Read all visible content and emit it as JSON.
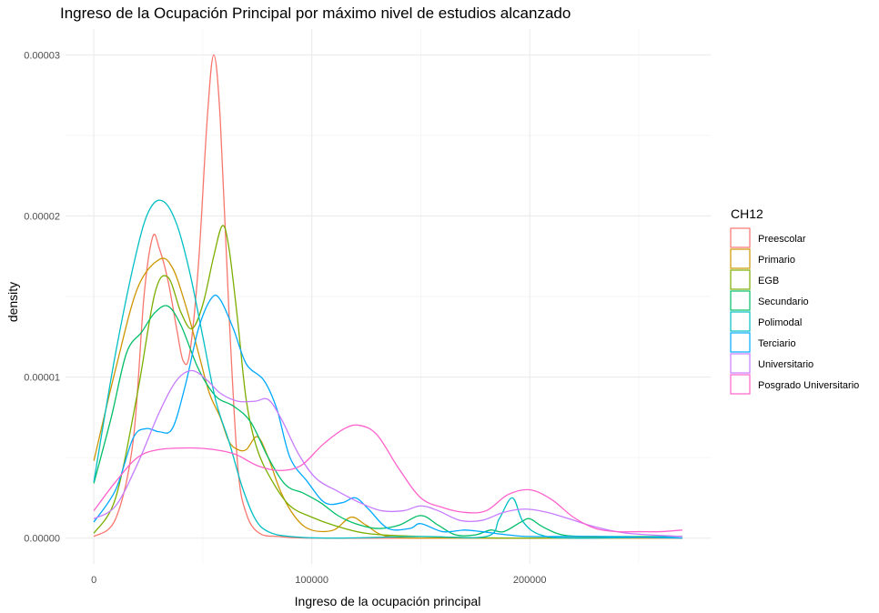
{
  "chart_data": {
    "type": "line",
    "title": "Ingreso de la Ocupación Principal por máximo nivel de estudios alcanzado",
    "xlabel": "Ingreso de la ocupación principal",
    "ylabel": "density",
    "xlim": [
      -13000,
      283000
    ],
    "ylim": [
      -1.6e-06,
      3.16e-05
    ],
    "x_ticks": [
      0,
      100000,
      200000
    ],
    "x_tick_labels": [
      "0",
      "100000",
      "200000"
    ],
    "y_ticks": [
      0,
      1e-05,
      2e-05,
      3e-05
    ],
    "y_tick_labels": [
      "0.00000",
      "0.00001",
      "0.00002",
      "0.00003"
    ],
    "grid": true,
    "legend": {
      "title": "CH12",
      "position": "right"
    },
    "series": [
      {
        "name": "Preescolar",
        "color": "#F8766D",
        "points": [
          [
            0,
            1e-07
          ],
          [
            10000,
            1.2e-06
          ],
          [
            18000,
            6e-06
          ],
          [
            23000,
            1.5e-05
          ],
          [
            27000,
            1.87e-05
          ],
          [
            30000,
            1.8e-05
          ],
          [
            34000,
            1.6e-05
          ],
          [
            38000,
            1.3e-05
          ],
          [
            41000,
            1.1e-05
          ],
          [
            44000,
            1.15e-05
          ],
          [
            48000,
            1.7e-05
          ],
          [
            52000,
            2.6e-05
          ],
          [
            55000,
            3e-05
          ],
          [
            58000,
            2.6e-05
          ],
          [
            62000,
            1.4e-05
          ],
          [
            66000,
            4.5e-06
          ],
          [
            70000,
            1.5e-06
          ],
          [
            76000,
            3e-07
          ],
          [
            85000,
            1e-07
          ],
          [
            100000,
            0
          ],
          [
            150000,
            0
          ],
          [
            200000,
            0
          ],
          [
            270000,
            0
          ]
        ]
      },
      {
        "name": "Primario",
        "color": "#CD9600",
        "points": [
          [
            0,
            4.8e-06
          ],
          [
            10000,
            1.05e-05
          ],
          [
            20000,
            1.55e-05
          ],
          [
            30000,
            1.73e-05
          ],
          [
            36000,
            1.68e-05
          ],
          [
            42000,
            1.45e-05
          ],
          [
            48000,
            1.15e-05
          ],
          [
            53000,
            9e-06
          ],
          [
            58000,
            7.5e-06
          ],
          [
            62000,
            6e-06
          ],
          [
            66000,
            5.5e-06
          ],
          [
            70000,
            5.5e-06
          ],
          [
            75000,
            6.3e-06
          ],
          [
            80000,
            5e-06
          ],
          [
            86000,
            2.8e-06
          ],
          [
            93000,
            1.2e-06
          ],
          [
            100000,
            5e-07
          ],
          [
            110000,
            5e-07
          ],
          [
            118000,
            1.3e-06
          ],
          [
            125000,
            8e-07
          ],
          [
            135000,
            1e-07
          ],
          [
            160000,
            0
          ],
          [
            200000,
            0
          ],
          [
            270000,
            0
          ]
        ]
      },
      {
        "name": "EGB",
        "color": "#7CAE00",
        "points": [
          [
            0,
            3e-07
          ],
          [
            10000,
            2.5e-06
          ],
          [
            20000,
            9e-06
          ],
          [
            28000,
            1.52e-05
          ],
          [
            34000,
            1.62e-05
          ],
          [
            40000,
            1.4e-05
          ],
          [
            45000,
            1.3e-05
          ],
          [
            50000,
            1.45e-05
          ],
          [
            55000,
            1.75e-05
          ],
          [
            59000,
            1.94e-05
          ],
          [
            62000,
            1.8e-05
          ],
          [
            66000,
            1.35e-05
          ],
          [
            70000,
            8.5e-06
          ],
          [
            75000,
            5.5e-06
          ],
          [
            82000,
            3.5e-06
          ],
          [
            90000,
            2e-06
          ],
          [
            100000,
            1.3e-06
          ],
          [
            110000,
            8e-07
          ],
          [
            125000,
            3e-07
          ],
          [
            150000,
            1e-07
          ],
          [
            200000,
            0
          ],
          [
            270000,
            1e-07
          ]
        ]
      },
      {
        "name": "Secundario",
        "color": "#00BE67",
        "points": [
          [
            0,
            3.4e-06
          ],
          [
            8000,
            7.5e-06
          ],
          [
            15000,
            1.15e-05
          ],
          [
            22000,
            1.28e-05
          ],
          [
            28000,
            1.4e-05
          ],
          [
            34000,
            1.44e-05
          ],
          [
            40000,
            1.32e-05
          ],
          [
            48000,
            1.05e-05
          ],
          [
            56000,
            8.8e-06
          ],
          [
            64000,
            8.2e-06
          ],
          [
            72000,
            7.2e-06
          ],
          [
            80000,
            5e-06
          ],
          [
            88000,
            3.3e-06
          ],
          [
            96000,
            2.8e-06
          ],
          [
            104000,
            2.2e-06
          ],
          [
            112000,
            1.4e-06
          ],
          [
            120000,
            9e-07
          ],
          [
            130000,
            6e-07
          ],
          [
            140000,
            8e-07
          ],
          [
            150000,
            1.4e-06
          ],
          [
            158000,
            8e-07
          ],
          [
            166000,
            2e-07
          ],
          [
            175000,
            2e-07
          ],
          [
            182000,
            5e-07
          ],
          [
            188000,
            4e-07
          ],
          [
            196000,
            1e-06
          ],
          [
            200000,
            1.2e-06
          ],
          [
            206000,
            7e-07
          ],
          [
            215000,
            2e-07
          ],
          [
            230000,
            1e-07
          ],
          [
            270000,
            1e-07
          ]
        ]
      },
      {
        "name": "Polimodal",
        "color": "#00BFC4",
        "points": [
          [
            0,
            3.5e-06
          ],
          [
            10000,
            1.15e-05
          ],
          [
            20000,
            1.8e-05
          ],
          [
            26000,
            2.05e-05
          ],
          [
            32000,
            2.09e-05
          ],
          [
            38000,
            1.95e-05
          ],
          [
            44000,
            1.65e-05
          ],
          [
            50000,
            1.25e-05
          ],
          [
            56000,
            8.5e-06
          ],
          [
            62000,
            6e-06
          ],
          [
            68000,
            3.2e-06
          ],
          [
            74000,
            1.2e-06
          ],
          [
            80000,
            4e-07
          ],
          [
            90000,
            1e-07
          ],
          [
            110000,
            0
          ],
          [
            150000,
            1e-07
          ],
          [
            180000,
            1e-07
          ],
          [
            186000,
            1.2e-06
          ],
          [
            192000,
            2.5e-06
          ],
          [
            197000,
            1e-06
          ],
          [
            205000,
            2e-07
          ],
          [
            220000,
            0
          ],
          [
            270000,
            1e-07
          ]
        ]
      },
      {
        "name": "Terciario",
        "color": "#00A9FF",
        "points": [
          [
            0,
            1e-06
          ],
          [
            10000,
            3e-06
          ],
          [
            18000,
            6.2e-06
          ],
          [
            24000,
            6.8e-06
          ],
          [
            30000,
            6.6e-06
          ],
          [
            36000,
            6.8e-06
          ],
          [
            42000,
            9.5e-06
          ],
          [
            48000,
            1.3e-05
          ],
          [
            54000,
            1.49e-05
          ],
          [
            58000,
            1.48e-05
          ],
          [
            64000,
            1.3e-05
          ],
          [
            70000,
            1.08e-05
          ],
          [
            78000,
            9.8e-06
          ],
          [
            84000,
            8e-06
          ],
          [
            90000,
            5e-06
          ],
          [
            98000,
            3.5e-06
          ],
          [
            106000,
            2.2e-06
          ],
          [
            114000,
            2.2e-06
          ],
          [
            120000,
            2.5e-06
          ],
          [
            126000,
            1.8e-06
          ],
          [
            135000,
            6e-07
          ],
          [
            145000,
            6e-07
          ],
          [
            150000,
            9e-07
          ],
          [
            160000,
            4e-07
          ],
          [
            170000,
            5e-07
          ],
          [
            178000,
            4e-07
          ],
          [
            190000,
            2e-07
          ],
          [
            200000,
            1e-07
          ],
          [
            230000,
            1e-07
          ],
          [
            270000,
            0
          ]
        ]
      },
      {
        "name": "Universitario",
        "color": "#C77CFF",
        "points": [
          [
            0,
            1.2e-06
          ],
          [
            10000,
            2e-06
          ],
          [
            20000,
            4.6e-06
          ],
          [
            30000,
            7.8e-06
          ],
          [
            38000,
            9.8e-06
          ],
          [
            45000,
            1.04e-05
          ],
          [
            52000,
            9.8e-06
          ],
          [
            58000,
            9e-06
          ],
          [
            66000,
            8.5e-06
          ],
          [
            74000,
            8.5e-06
          ],
          [
            80000,
            8.6e-06
          ],
          [
            86000,
            7.4e-06
          ],
          [
            94000,
            5.2e-06
          ],
          [
            102000,
            3.7e-06
          ],
          [
            112000,
            2.9e-06
          ],
          [
            122000,
            2.2e-06
          ],
          [
            132000,
            1.7e-06
          ],
          [
            142000,
            1.7e-06
          ],
          [
            150000,
            2e-06
          ],
          [
            158000,
            1.7e-06
          ],
          [
            168000,
            1.1e-06
          ],
          [
            178000,
            1.1e-06
          ],
          [
            188000,
            1.6e-06
          ],
          [
            198000,
            1.8e-06
          ],
          [
            208000,
            1.6e-06
          ],
          [
            218000,
            1.2e-06
          ],
          [
            230000,
            7e-07
          ],
          [
            245000,
            3e-07
          ],
          [
            270000,
            1e-07
          ]
        ]
      },
      {
        "name": "Posgrado Universitario",
        "color": "#FF61CC",
        "points": [
          [
            0,
            1.7e-06
          ],
          [
            10000,
            3.5e-06
          ],
          [
            20000,
            5e-06
          ],
          [
            30000,
            5.5e-06
          ],
          [
            45000,
            5.6e-06
          ],
          [
            55000,
            5.5e-06
          ],
          [
            65000,
            5.2e-06
          ],
          [
            75000,
            4.5e-06
          ],
          [
            85000,
            4.2e-06
          ],
          [
            95000,
            4.5e-06
          ],
          [
            105000,
            5.8e-06
          ],
          [
            115000,
            6.8e-06
          ],
          [
            122000,
            7e-06
          ],
          [
            130000,
            6.4e-06
          ],
          [
            140000,
            4.3e-06
          ],
          [
            150000,
            2.5e-06
          ],
          [
            160000,
            1.9e-06
          ],
          [
            170000,
            1.6e-06
          ],
          [
            180000,
            1.7e-06
          ],
          [
            190000,
            2.7e-06
          ],
          [
            200000,
            3e-06
          ],
          [
            210000,
            2.4e-06
          ],
          [
            220000,
            1.3e-06
          ],
          [
            230000,
            6e-07
          ],
          [
            240000,
            4e-07
          ],
          [
            250000,
            4e-07
          ],
          [
            260000,
            4e-07
          ],
          [
            270000,
            5e-07
          ]
        ]
      }
    ]
  }
}
